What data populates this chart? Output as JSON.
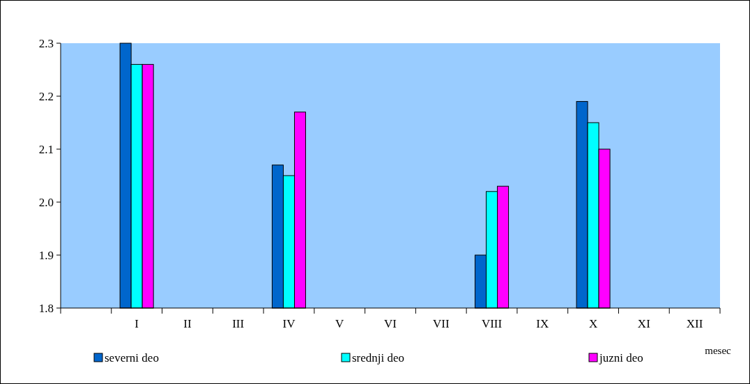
{
  "chart_data": {
    "type": "bar",
    "xlabel": "mesec",
    "categories": [
      null,
      "I",
      "II",
      "III",
      "IV",
      "V",
      "VI",
      "VII",
      "VIII",
      "IX",
      "X",
      "XI",
      "XII"
    ],
    "series": [
      {
        "name": "severni deo",
        "color": "#0066cc",
        "values": [
          null,
          2.3,
          null,
          null,
          2.07,
          null,
          null,
          null,
          1.9,
          null,
          2.19,
          null,
          null
        ]
      },
      {
        "name": "srednji deo",
        "color": "#00ffff",
        "values": [
          null,
          2.26,
          null,
          null,
          2.05,
          null,
          null,
          null,
          2.02,
          null,
          2.15,
          null,
          null
        ]
      },
      {
        "name": "juzni deo",
        "color": "#ff00ff",
        "values": [
          null,
          2.26,
          null,
          null,
          2.17,
          null,
          null,
          null,
          2.03,
          null,
          2.1,
          null,
          null
        ]
      }
    ],
    "ylim": [
      1.8,
      2.3
    ],
    "yticks": [
      1.8,
      1.9,
      {
        "value": 2,
        "label": "2.0"
      },
      2.1,
      2.2,
      2.3
    ],
    "legend": "bottom",
    "grid": false
  }
}
